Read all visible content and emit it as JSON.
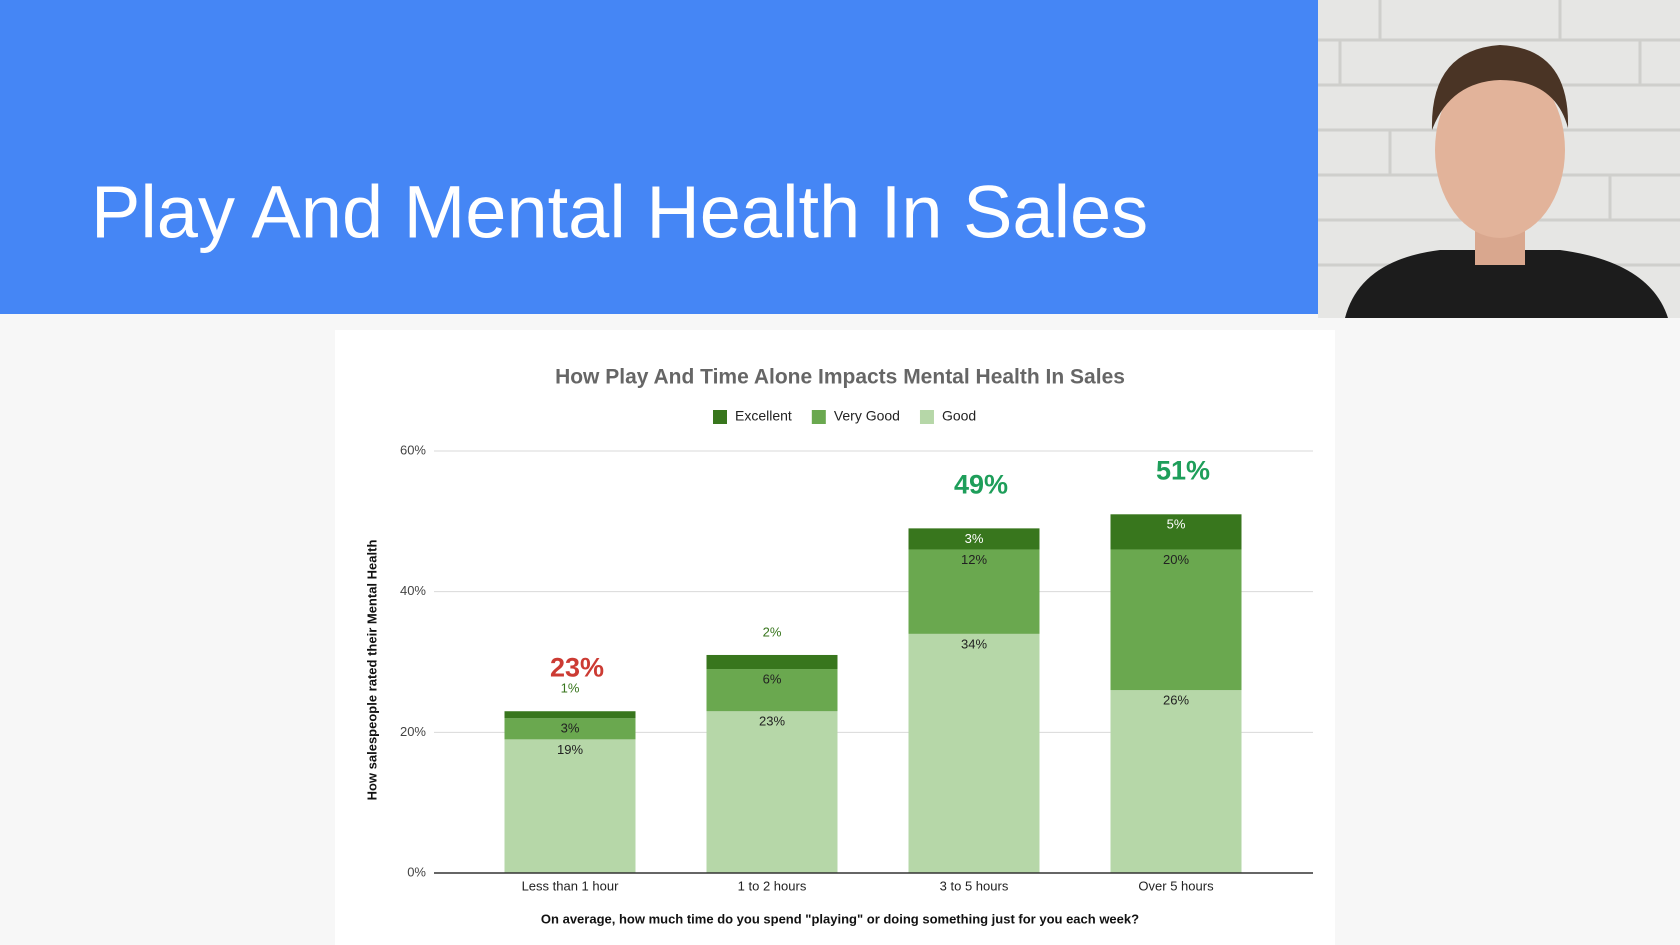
{
  "slide": {
    "title": "Play And Mental Health In Sales"
  },
  "chart_data": {
    "type": "stacked_bar",
    "title": "How Play And Time Alone Impacts Mental Health In Sales",
    "x_label": "On average, how much time do you spend \"playing\" or doing something just for you each week?",
    "y_label": "How salespeople rated their Mental Health",
    "categories": [
      "Less than 1 hour",
      "1 to 2 hours",
      "3 to 5 hours",
      "Over 5 hours"
    ],
    "series": [
      {
        "name": "Good",
        "color": "#b6d7a8",
        "values": [
          19,
          23,
          34,
          26
        ],
        "value_labels": [
          "19%",
          "23%",
          "34%",
          "26%"
        ]
      },
      {
        "name": "Very Good",
        "color": "#6aa84f",
        "values": [
          3,
          6,
          12,
          20
        ],
        "value_labels": [
          "3%",
          "6%",
          "12%",
          "20%"
        ]
      },
      {
        "name": "Excellent",
        "color": "#38761d",
        "values": [
          1,
          2,
          3,
          5
        ],
        "value_labels": [
          "1%",
          "2%",
          "3%",
          "5%"
        ]
      }
    ],
    "annotations": [
      {
        "text": "23%",
        "category": 0,
        "color": "#cc3b33"
      },
      {
        "text": "49%",
        "category": 2,
        "color": "#1e9e5a"
      },
      {
        "text": "51%",
        "category": 3,
        "color": "#1e9e5a"
      }
    ],
    "ylim": [
      0,
      60
    ],
    "yticks": [
      {
        "value": 0,
        "label": "0%"
      },
      {
        "value": 20,
        "label": "20%"
      },
      {
        "value": 40,
        "label": "40%"
      },
      {
        "value": 60,
        "label": "60%"
      }
    ],
    "grid": true,
    "legend": "top"
  }
}
